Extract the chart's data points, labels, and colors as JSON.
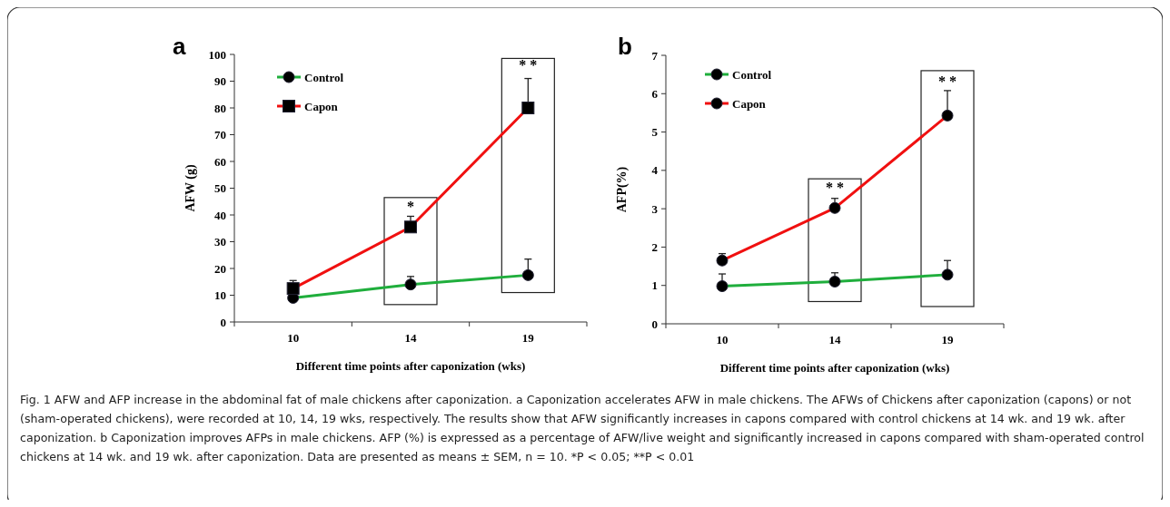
{
  "chart_data": [
    {
      "type": "line",
      "title": "a",
      "xlabel": "Different  time points after caponization (wks)",
      "ylabel": "AFW (g)",
      "categories": [
        "10",
        "14",
        "19"
      ],
      "ylim": [
        0,
        100
      ],
      "yticks": [
        0,
        10,
        20,
        30,
        40,
        50,
        60,
        70,
        80,
        90,
        100
      ],
      "legend": "top left",
      "grid": false,
      "series": [
        {
          "name": "Control",
          "color": "#1fae3c",
          "marker": "circle",
          "values": [
            9,
            14,
            17.5
          ],
          "errors": [
            [
              9,
              10
            ],
            [
              14,
              17
            ],
            [
              17.5,
              23.5
            ]
          ]
        },
        {
          "name": "Capon",
          "color": "#f01010",
          "marker": "square",
          "values": [
            12.5,
            35.5,
            80
          ],
          "errors": [
            [
              12.5,
              15.5
            ],
            [
              35.5,
              39.5
            ],
            [
              80,
              91
            ]
          ]
        }
      ],
      "annotations": [
        "*",
        "* *",
        "Fig. 1 AFW and AFP increase in the abdominal fat of male chickens after caponization. a Caponization accelerates AFW in male chickens. The AFWs of Chickens after caponization (capons) or not (sham-operated chickens), were recorded at 10, 14, 19 wks, respectively. The results show that AFW significantly increases in capons compared with control chickens at 14 wk. and 19 wk. after caponization. b Caponization improves AFPs in male chickens. AFP (%) is expressed as a percentage of AFW/live weight and significantly increased in capons compared with sham-operated control chickens at 14 wk. and 19 wk. after caponization. Data are presented as means ± SEM, n = 10. *P < 0.05; **P < 0.01"
      ]
    },
    {
      "type": "line",
      "title": "b",
      "xlabel": "Different  time points after caponization (wks)",
      "ylabel": "AFP(%)",
      "categories": [
        "10",
        "14",
        "19"
      ],
      "ylim": [
        0,
        7
      ],
      "yticks": [
        0,
        1,
        2,
        3,
        4,
        5,
        6,
        7
      ],
      "legend": "top left",
      "grid": false,
      "series": [
        {
          "name": "Control",
          "color": "#1fae3c",
          "marker": "circle",
          "values": [
            0.98,
            1.1,
            1.28
          ],
          "errors": [
            [
              0.98,
              1.3
            ],
            [
              1.1,
              1.33
            ],
            [
              1.28,
              1.65
            ]
          ]
        },
        {
          "name": "Capon",
          "color": "#f01010",
          "marker": "circle",
          "values": [
            1.65,
            3.02,
            5.43
          ],
          "errors": [
            [
              1.65,
              1.83
            ],
            [
              3.02,
              3.27
            ],
            [
              5.43,
              6.08
            ]
          ]
        }
      ],
      "annotations": [
        "* *",
        "* *"
      ]
    }
  ]
}
